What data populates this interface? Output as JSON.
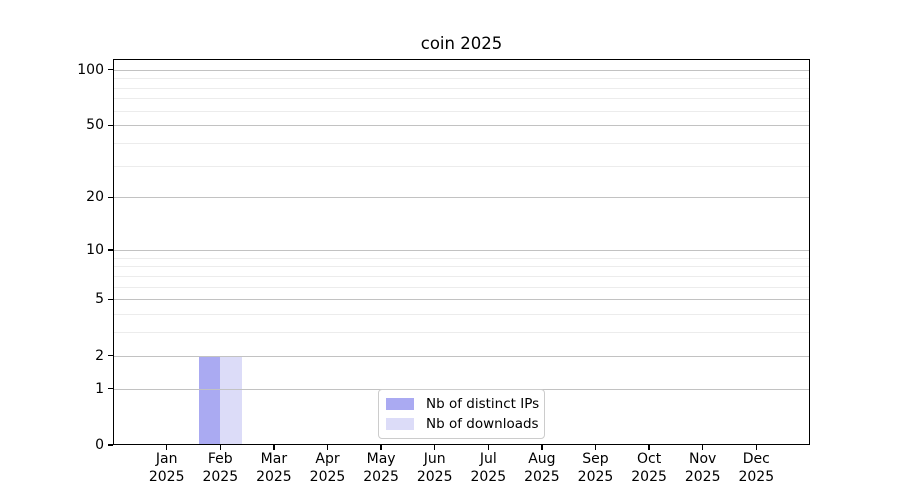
{
  "chart_data": {
    "type": "bar",
    "title": "coin 2025",
    "x_tick_labels": [
      {
        "month": "Jan",
        "year": "2025"
      },
      {
        "month": "Feb",
        "year": "2025"
      },
      {
        "month": "Mar",
        "year": "2025"
      },
      {
        "month": "Apr",
        "year": "2025"
      },
      {
        "month": "May",
        "year": "2025"
      },
      {
        "month": "Jun",
        "year": "2025"
      },
      {
        "month": "Jul",
        "year": "2025"
      },
      {
        "month": "Aug",
        "year": "2025"
      },
      {
        "month": "Sep",
        "year": "2025"
      },
      {
        "month": "Oct",
        "year": "2025"
      },
      {
        "month": "Nov",
        "year": "2025"
      },
      {
        "month": "Dec",
        "year": "2025"
      }
    ],
    "series": [
      {
        "name": "Nb of distinct IPs",
        "color": "#aaaaf2",
        "values": [
          0,
          2,
          0,
          0,
          0,
          0,
          0,
          0,
          0,
          0,
          0,
          0
        ]
      },
      {
        "name": "Nb of downloads",
        "color": "#dcdcf8",
        "values": [
          0,
          2,
          0,
          0,
          0,
          0,
          0,
          0,
          0,
          0,
          0,
          0
        ]
      }
    ],
    "y_axis": {
      "scale": "log1p",
      "major_ticks": [
        0,
        1,
        2,
        5,
        10,
        20,
        50,
        100
      ],
      "minor_gridlines": [
        3,
        4,
        6,
        7,
        8,
        9,
        30,
        40,
        60,
        70,
        80,
        90
      ],
      "range": [
        0,
        115
      ]
    },
    "grid": {
      "major_color": "#c2c2c2",
      "minor_color": "#ececec",
      "drawn_above_bars": true
    },
    "legend": {
      "items": [
        {
          "label": "Nb of distinct IPs",
          "color": "#aaaaf2"
        },
        {
          "label": "Nb of downloads",
          "color": "#dcdcf8"
        }
      ]
    }
  }
}
